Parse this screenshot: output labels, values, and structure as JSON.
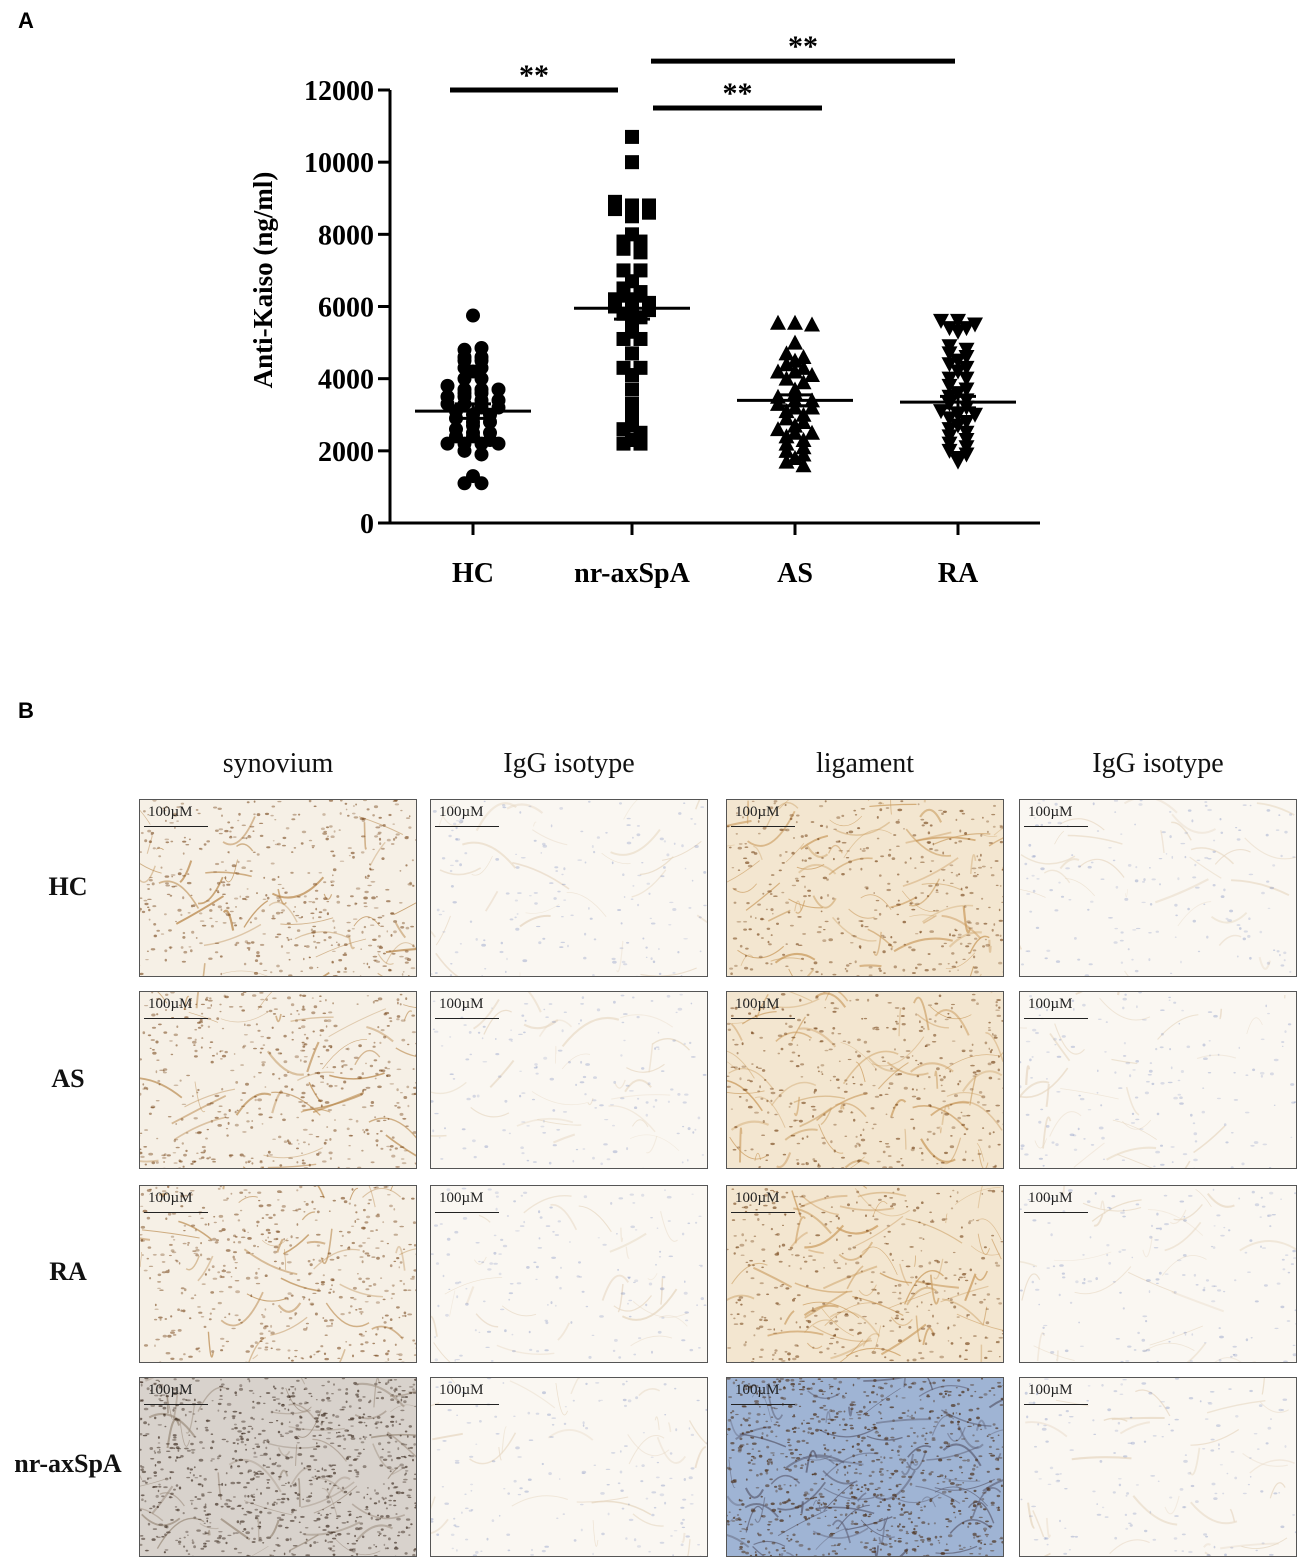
{
  "panel_a": {
    "label": "A"
  },
  "panel_b": {
    "label": "B"
  },
  "chart_data": {
    "type": "scatter",
    "ylabel": "Anti-Kaiso (ng/ml)",
    "ylim": [
      0,
      12000
    ],
    "yticks": [
      0,
      2000,
      4000,
      6000,
      8000,
      10000,
      12000
    ],
    "categories": [
      "HC",
      "nr-axSpA",
      "AS",
      "RA"
    ],
    "series": [
      {
        "category": "HC",
        "marker": "circle",
        "mean": 3100,
        "sem": 200,
        "values": [
          5750,
          4800,
          4850,
          4600,
          4600,
          4500,
          4500,
          4300,
          4300,
          4200,
          4000,
          4000,
          3800,
          3700,
          3700,
          3700,
          3600,
          3600,
          3500,
          3500,
          3400,
          3400,
          3300,
          3300,
          3200,
          3200,
          3100,
          3000,
          3000,
          2900,
          2800,
          2800,
          2700,
          2600,
          2500,
          2500,
          2400,
          2400,
          2300,
          2200,
          2200,
          2200,
          2200,
          2000,
          1900,
          1300,
          1100,
          1100
        ]
      },
      {
        "category": "nr-axSpA",
        "marker": "square",
        "mean": 5950,
        "sem": 300,
        "values": [
          10700,
          10000,
          8900,
          8800,
          8800,
          8700,
          8700,
          8600,
          8500,
          8000,
          7800,
          7800,
          7600,
          7500,
          7000,
          7000,
          6700,
          6500,
          6400,
          6300,
          6300,
          6200,
          6200,
          6100,
          6000,
          6000,
          5900,
          5800,
          5700,
          5500,
          5300,
          5100,
          5100,
          4700,
          4300,
          4300,
          4100,
          3700,
          3300,
          3000,
          2900,
          2700,
          2600,
          2500,
          2300,
          2200,
          2200
        ]
      },
      {
        "category": "AS",
        "marker": "triangle-up",
        "mean": 3400,
        "sem": 150,
        "values": [
          5550,
          5550,
          5500,
          5000,
          4700,
          4600,
          4500,
          4400,
          4300,
          4200,
          4200,
          4100,
          4000,
          3900,
          3700,
          3600,
          3500,
          3400,
          3400,
          3300,
          3200,
          3200,
          3100,
          3000,
          2900,
          2800,
          2700,
          2600,
          2500,
          2500,
          2400,
          2300,
          2200,
          2100,
          2000,
          1900,
          1800,
          1700,
          1600
        ]
      },
      {
        "category": "RA",
        "marker": "triangle-down",
        "mean": 3350,
        "sem": 160,
        "values": [
          5600,
          5600,
          5500,
          5400,
          5400,
          5300,
          4900,
          4800,
          4700,
          4600,
          4500,
          4400,
          4300,
          4200,
          4000,
          4000,
          3800,
          3700,
          3600,
          3500,
          3400,
          3300,
          3200,
          3100,
          3000,
          3000,
          2900,
          2800,
          2700,
          2600,
          2500,
          2400,
          2300,
          2200,
          2100,
          2000,
          1900,
          1800,
          1700
        ]
      }
    ],
    "significance": [
      {
        "from": "HC",
        "to": "nr-axSpA",
        "label": "**",
        "level": 12000
      },
      {
        "from": "nr-axSpA",
        "to": "RA",
        "label": "**",
        "level": 12800
      },
      {
        "from": "nr-axSpA",
        "to": "AS",
        "label": "**",
        "level": 11500
      }
    ]
  },
  "ihc_grid": {
    "columns": [
      "synovium",
      "IgG isotype",
      "ligament",
      "IgG isotype"
    ],
    "rows": [
      "HC",
      "AS",
      "RA",
      "nr-axSpA"
    ],
    "scale_label": "100µM",
    "colors": {
      "brown_stain": "#b8874a",
      "dark_brown": "#7a4a1e",
      "pale_bg": "#f6f0e6",
      "blue_nuclei": "#6b7fb8",
      "bluish_bg": "#9fb4d4"
    }
  }
}
